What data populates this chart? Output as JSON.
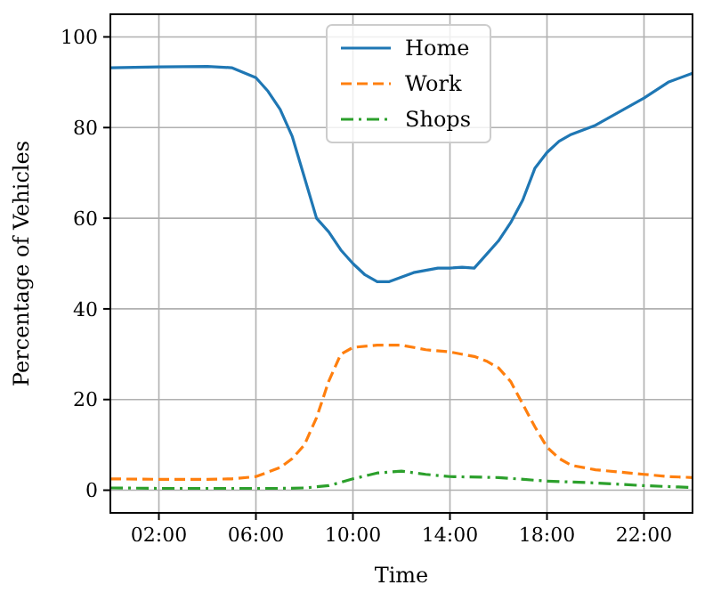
{
  "chart_data": {
    "type": "line",
    "xlabel": "Time",
    "ylabel": "Percentage of Vehicles",
    "xlim": [
      0,
      24
    ],
    "ylim": [
      -5,
      105
    ],
    "xticks": [
      {
        "value": 2,
        "label": "02:00"
      },
      {
        "value": 6,
        "label": "06:00"
      },
      {
        "value": 10,
        "label": "10:00"
      },
      {
        "value": 14,
        "label": "14:00"
      },
      {
        "value": 18,
        "label": "18:00"
      },
      {
        "value": 22,
        "label": "22:00"
      }
    ],
    "yticks": [
      0,
      20,
      40,
      60,
      80,
      100
    ],
    "grid": true,
    "legend": "top",
    "marker": "none",
    "series": [
      {
        "name": "Home",
        "color": "#1f77b4",
        "line_style": "solid",
        "x": [
          0,
          2,
          4,
          5,
          6,
          6.5,
          7,
          7.5,
          8,
          8.5,
          9,
          9.5,
          10,
          10.5,
          11,
          11.5,
          12,
          12.5,
          13,
          13.5,
          14,
          14.5,
          15,
          15.5,
          16,
          16.5,
          17,
          17.5,
          18,
          18.5,
          19,
          20,
          21,
          22,
          23,
          24
        ],
        "values": [
          93.2,
          93.4,
          93.5,
          93.2,
          91,
          88,
          84,
          78,
          69,
          60,
          57,
          53,
          50,
          47.5,
          46,
          46,
          47,
          48,
          48.5,
          49,
          49,
          49.2,
          49,
          52,
          55,
          59,
          64,
          71,
          74.5,
          77,
          78.5,
          80.5,
          83.5,
          86.5,
          90,
          92
        ]
      },
      {
        "name": "Work",
        "color": "#ff7f0e",
        "line_style": "dashed",
        "x": [
          0,
          2,
          4,
          5,
          6,
          6.5,
          7,
          7.5,
          8,
          8.5,
          9,
          9.5,
          10,
          11,
          12,
          13,
          14,
          15,
          15.5,
          16,
          16.5,
          17,
          17.5,
          18,
          18.5,
          19,
          20,
          21,
          22,
          23,
          24
        ],
        "values": [
          2.5,
          2.4,
          2.4,
          2.5,
          3,
          4,
          5,
          7,
          10,
          16,
          24,
          30,
          31.5,
          32,
          32,
          31,
          30.5,
          29.5,
          28.5,
          27,
          24,
          19,
          14,
          9.5,
          7,
          5.5,
          4.5,
          4,
          3.5,
          3,
          2.8
        ]
      },
      {
        "name": "Shops",
        "color": "#2ca02c",
        "line_style": "dashdot",
        "x": [
          0,
          2,
          4,
          6,
          7,
          8,
          9,
          10,
          11,
          12,
          13,
          14,
          16,
          18,
          20,
          22,
          24
        ],
        "values": [
          0.5,
          0.4,
          0.4,
          0.4,
          0.4,
          0.5,
          1,
          2.5,
          3.8,
          4.2,
          3.5,
          3,
          2.8,
          2,
          1.6,
          1,
          0.6
        ]
      }
    ]
  }
}
